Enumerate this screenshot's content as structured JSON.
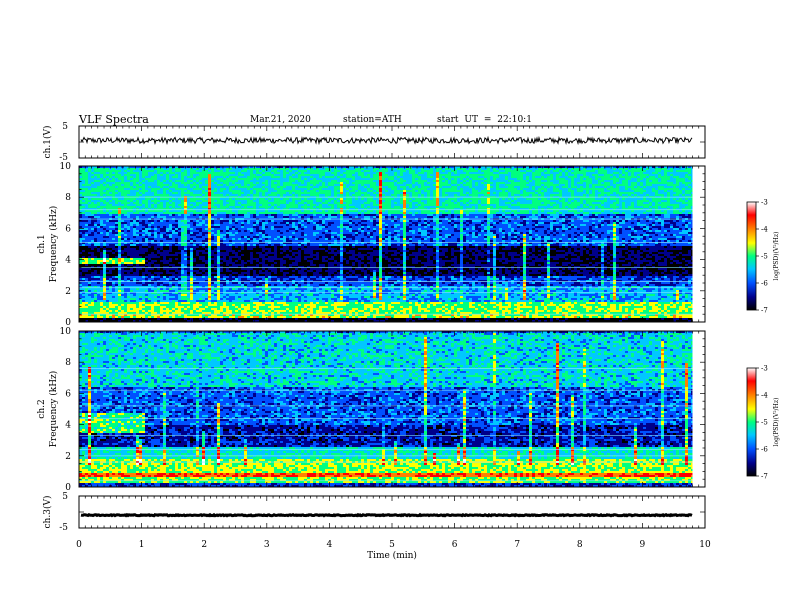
{
  "header": {
    "title": "VLF Spectra",
    "date": "Mar.21, 2020",
    "station": "station=ATH",
    "start": "start UT = 22:10:1"
  },
  "chart_data": [
    {
      "type": "line",
      "panel": "ch1-waveform",
      "ylabel": "ch.1(V)",
      "ylim": [
        -5,
        5
      ],
      "yticks": [
        "5",
        "-5"
      ],
      "xlim": [
        0,
        10
      ],
      "series_description": "noisy waveform near 0 V, amplitude about ±1 V",
      "offset_v": 0.5,
      "amplitude_v": 0.9,
      "color": "#000000"
    },
    {
      "type": "heatmap",
      "panel": "ch1-spectrogram",
      "ylabel": "ch.1 Frequency (kHz)",
      "ylim": [
        0,
        10
      ],
      "yticks": [
        "0",
        "2",
        "4",
        "6",
        "8",
        "10"
      ],
      "xlim": [
        0,
        10
      ],
      "data_end_min": 9.8,
      "colorbar": {
        "label": "log(PSD)(V²/Hz)",
        "range": [
          -7,
          -3
        ],
        "ticks": [
          "-3",
          "-4",
          "-5",
          "-6",
          "-7"
        ],
        "colors": [
          "#000000",
          "#00008b",
          "#0050ff",
          "#00c8ff",
          "#00ff80",
          "#ffff00",
          "#ff8000",
          "#ff0000",
          "#ffffff"
        ]
      },
      "bands": [
        {
          "from_khz": 0.0,
          "to_khz": 0.3,
          "level": -7
        },
        {
          "from_khz": 0.3,
          "to_khz": 0.6,
          "level": -4.6
        },
        {
          "from_khz": 0.6,
          "to_khz": 1.4,
          "level": -4.8
        },
        {
          "from_khz": 1.4,
          "to_khz": 2.4,
          "level": -5.6
        },
        {
          "from_khz": 2.4,
          "to_khz": 3.0,
          "level": -6.1
        },
        {
          "from_khz": 3.0,
          "to_khz": 5.0,
          "level": -6.7
        },
        {
          "from_khz": 5.0,
          "to_khz": 7.0,
          "level": -6.0
        },
        {
          "from_khz": 7.0,
          "to_khz": 10.0,
          "level": -5.2
        }
      ],
      "lines_khz": [
        0.5,
        1.9,
        2.2,
        2.6,
        3.5,
        5.1,
        6.6,
        7.2,
        8.0
      ],
      "feature": {
        "x_from": 0.0,
        "x_to": 1.05,
        "from_khz": 3.8,
        "to_khz": 4.2,
        "level": -4.8
      }
    },
    {
      "type": "heatmap",
      "panel": "ch2-spectrogram",
      "ylabel": "ch.2 Frequency (kHz)",
      "ylim": [
        0,
        10
      ],
      "yticks": [
        "0",
        "2",
        "4",
        "6",
        "8",
        "10"
      ],
      "xlim": [
        0,
        10
      ],
      "data_end_min": 9.8,
      "colorbar": {
        "label": "log(PSD)(V²/Hz)",
        "range": [
          -7,
          -3
        ],
        "ticks": [
          "-3",
          "-4",
          "-5",
          "-6",
          "-7"
        ],
        "colors": [
          "#000000",
          "#00008b",
          "#0050ff",
          "#00c8ff",
          "#00ff80",
          "#ffff00",
          "#ff8000",
          "#ff0000",
          "#ffffff"
        ]
      },
      "bands": [
        {
          "from_khz": 0.0,
          "to_khz": 0.3,
          "level": -6.2
        },
        {
          "from_khz": 0.3,
          "to_khz": 0.7,
          "level": -4.8
        },
        {
          "from_khz": 0.7,
          "to_khz": 1.0,
          "level": -3.8
        },
        {
          "from_khz": 1.0,
          "to_khz": 1.8,
          "level": -4.7
        },
        {
          "from_khz": 1.8,
          "to_khz": 2.6,
          "level": -5.3
        },
        {
          "from_khz": 2.6,
          "to_khz": 4.0,
          "level": -6.4
        },
        {
          "from_khz": 4.0,
          "to_khz": 6.5,
          "level": -6.0
        },
        {
          "from_khz": 6.5,
          "to_khz": 10.0,
          "level": -5.4
        }
      ],
      "lines_khz": [
        0.4,
        1.6,
        2.0,
        2.4,
        3.3,
        4.4,
        5.2,
        6.2,
        7.6
      ],
      "feature": {
        "x_from": 0.0,
        "x_to": 1.05,
        "from_khz": 3.5,
        "to_khz": 4.8,
        "level": -5.0
      }
    },
    {
      "type": "line",
      "panel": "ch3-waveform",
      "ylabel": "ch.3(V)",
      "ylim": [
        -5,
        5
      ],
      "yticks": [
        "5",
        "-5"
      ],
      "xlim": [
        0,
        10
      ],
      "series_description": "near-flat thick signal at about -1 V",
      "offset_v": -1.0,
      "amplitude_v": 0.15,
      "color": "#000000"
    }
  ],
  "xaxis": {
    "label": "Time (min)",
    "ticks": [
      "0",
      "1",
      "2",
      "3",
      "4",
      "5",
      "6",
      "7",
      "8",
      "9",
      "10"
    ]
  }
}
